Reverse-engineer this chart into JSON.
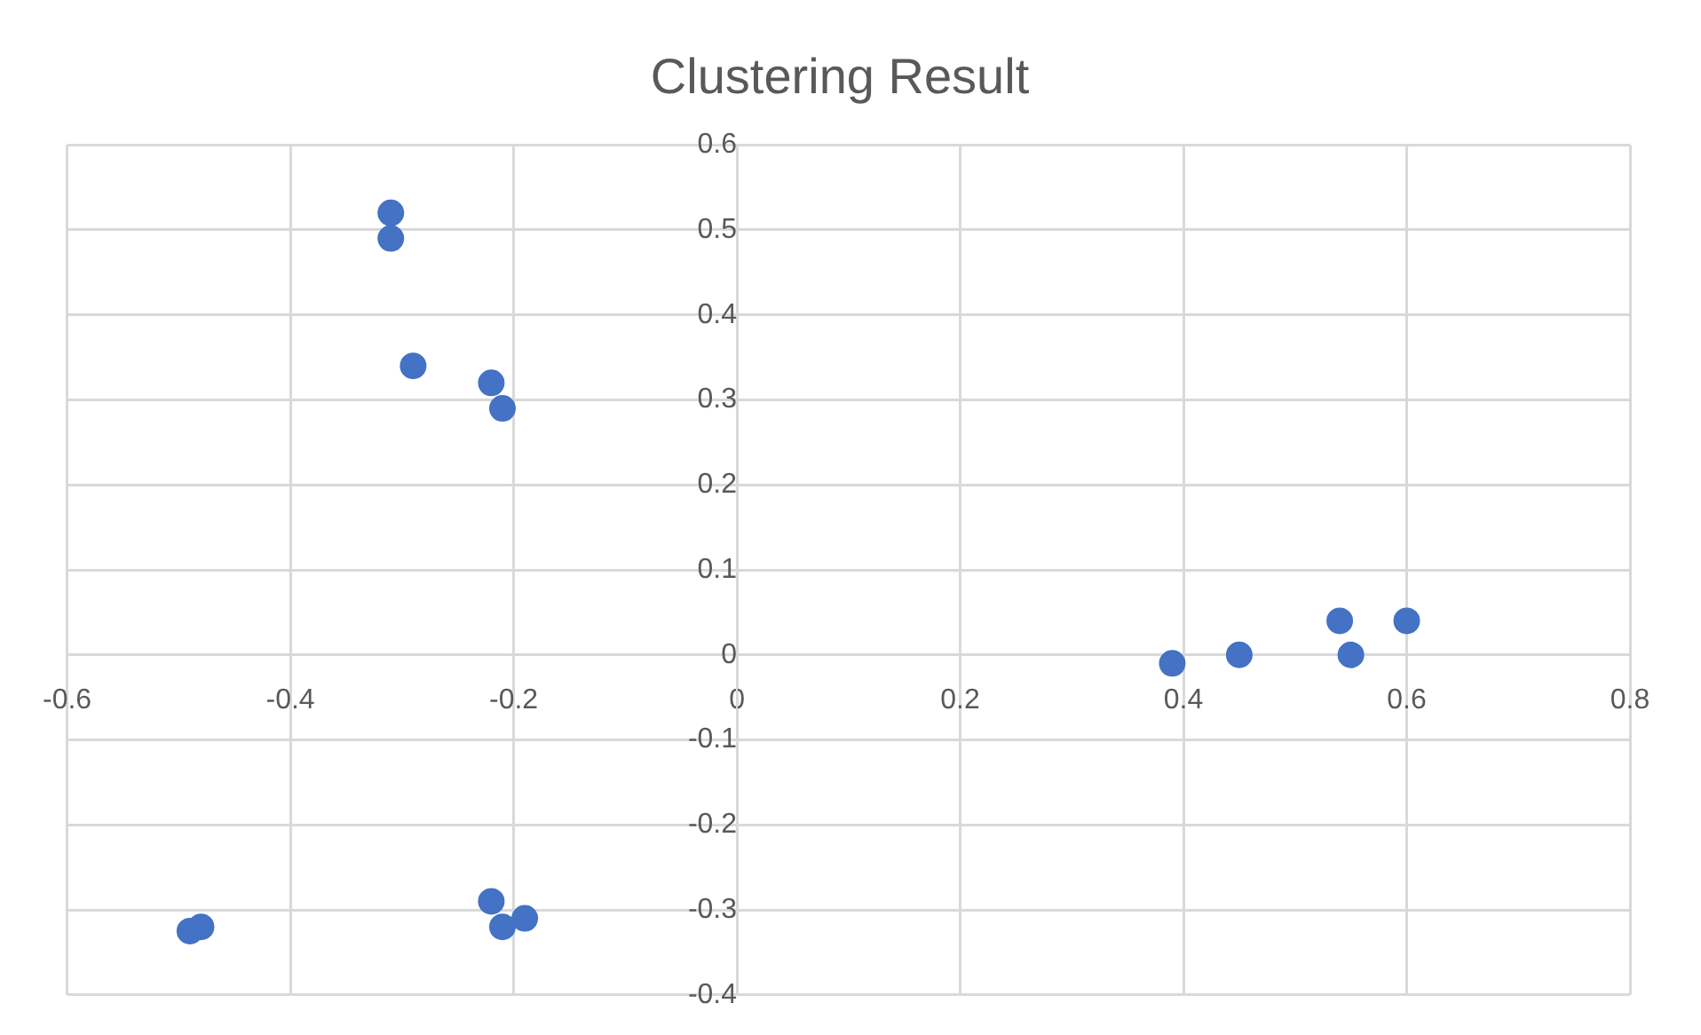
{
  "chart_data": {
    "type": "scatter",
    "title": "Clustering Result",
    "x": [
      -0.31,
      -0.31,
      -0.29,
      -0.22,
      -0.21,
      -0.49,
      -0.48,
      -0.22,
      -0.21,
      -0.19,
      0.39,
      0.45,
      0.54,
      0.55,
      0.6
    ],
    "series": [
      {
        "color": "#4472c4",
        "values": [
          0.52,
          0.49,
          0.34,
          0.32,
          0.29,
          -0.325,
          -0.32,
          -0.29,
          -0.32,
          -0.31,
          -0.01,
          0,
          0.04,
          0,
          0.04
        ]
      }
    ],
    "xlim": [
      -0.6,
      0.8
    ],
    "xticks": [
      -0.6,
      -0.4,
      -0.2,
      0,
      0.2,
      0.4,
      0.6,
      0.8
    ],
    "ylim": [
      -0.4,
      0.6
    ],
    "yticks": [
      -0.4,
      -0.3,
      -0.2,
      -0.1,
      0,
      0.1,
      0.2,
      0.3,
      0.4,
      0.5,
      0.6
    ],
    "grid": true,
    "legend": false,
    "marker": "circle"
  }
}
